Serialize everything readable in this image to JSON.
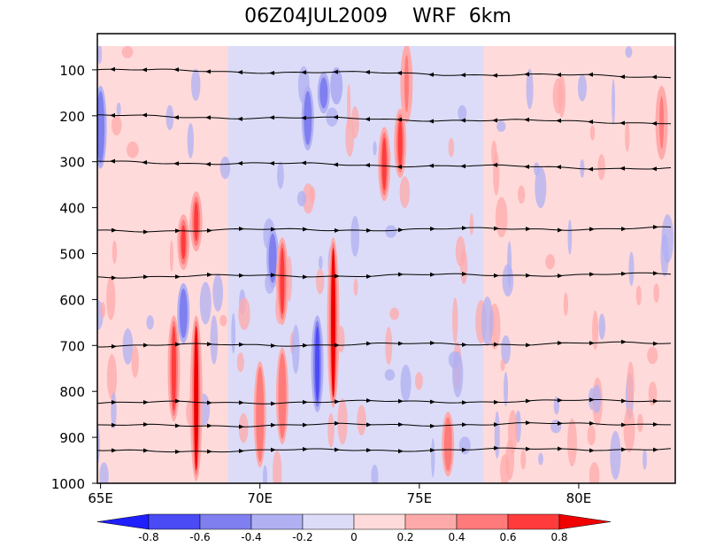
{
  "chart_data": {
    "type": "heatmap",
    "title": "06Z04JUL2009    WRF  6km",
    "xlabel": "",
    "ylabel": "",
    "x_range": [
      64.9,
      83.0
    ],
    "y_range": [
      1000,
      50
    ],
    "y_reversed": true,
    "x_ticks": [
      {
        "value": 65,
        "label": "65E"
      },
      {
        "value": 70,
        "label": "70E"
      },
      {
        "value": 75,
        "label": "75E"
      },
      {
        "value": 80,
        "label": "80E"
      }
    ],
    "y_ticks": [
      {
        "value": 100,
        "label": "100"
      },
      {
        "value": 200,
        "label": "200"
      },
      {
        "value": 300,
        "label": "300"
      },
      {
        "value": 400,
        "label": "400"
      },
      {
        "value": 500,
        "label": "500"
      },
      {
        "value": 600,
        "label": "600"
      },
      {
        "value": 700,
        "label": "700"
      },
      {
        "value": 800,
        "label": "800"
      },
      {
        "value": 900,
        "label": "900"
      },
      {
        "value": 1000,
        "label": "1000"
      }
    ],
    "colorbar": {
      "boundaries": [
        "-0.8",
        "-0.6",
        "-0.4",
        "-0.2",
        "0",
        "0.2",
        "0.4",
        "0.6",
        "0.8"
      ],
      "colors": [
        "#1f1fff",
        "#4b4bf5",
        "#7f7ff0",
        "#b0b0f3",
        "#dcdcf8",
        "#ffdada",
        "#ffaaaa",
        "#ff7b7b",
        "#ff3b3b",
        "#f00000"
      ]
    },
    "grid": false,
    "background_bands": [
      {
        "lon": [
          65.0,
          66.5
        ],
        "level": 0.1
      },
      {
        "lon": [
          66.5,
          69.0
        ],
        "level": 0.1
      },
      {
        "lon": [
          69.0,
          73.5
        ],
        "level": -0.1
      },
      {
        "lon": [
          73.5,
          77.0
        ],
        "level": -0.1
      },
      {
        "lon": [
          77.0,
          83.0
        ],
        "level": 0.1
      }
    ],
    "features": [
      {
        "lon": 65.0,
        "p": [
          150,
          300
        ],
        "level": -0.5
      },
      {
        "lon": 67.3,
        "p": [
          650,
          850
        ],
        "level": 0.6
      },
      {
        "lon": 67.6,
        "p": [
          430,
          520
        ],
        "level": 0.6
      },
      {
        "lon": 67.6,
        "p": [
          580,
          680
        ],
        "level": -0.5
      },
      {
        "lon": 68.0,
        "p": [
          650,
          980
        ],
        "level": 0.8
      },
      {
        "lon": 68.0,
        "p": [
          380,
          480
        ],
        "level": 0.6
      },
      {
        "lon": 70.0,
        "p": [
          750,
          950
        ],
        "level": 0.5
      },
      {
        "lon": 70.4,
        "p": [
          460,
          560
        ],
        "level": -0.5
      },
      {
        "lon": 70.7,
        "p": [
          480,
          640
        ],
        "level": 0.7
      },
      {
        "lon": 70.7,
        "p": [
          720,
          900
        ],
        "level": 0.5
      },
      {
        "lon": 71.5,
        "p": [
          150,
          260
        ],
        "level": -0.5
      },
      {
        "lon": 71.8,
        "p": [
          650,
          830
        ],
        "level": -0.7
      },
      {
        "lon": 72.3,
        "p": [
          480,
          820
        ],
        "level": 0.8
      },
      {
        "lon": 72.0,
        "p": [
          120,
          180
        ],
        "level": -0.5
      },
      {
        "lon": 72.4,
        "p": [
          110,
          160
        ],
        "level": -0.4
      },
      {
        "lon": 73.9,
        "p": [
          240,
          370
        ],
        "level": 0.7
      },
      {
        "lon": 74.4,
        "p": [
          200,
          320
        ],
        "level": 0.6
      },
      {
        "lon": 74.6,
        "p": [
          60,
          200
        ],
        "level": 0.4
      },
      {
        "lon": 75.9,
        "p": [
          860,
          970
        ],
        "level": 0.5
      },
      {
        "lon": 82.6,
        "p": [
          150,
          280
        ],
        "level": 0.4
      }
    ],
    "streamlines": [
      {
        "p": 100,
        "dir": "west"
      },
      {
        "p": 200,
        "dir": "west"
      },
      {
        "p": 300,
        "dir": "west"
      },
      {
        "p": 450,
        "dir": "east"
      },
      {
        "p": 550,
        "dir": "east"
      },
      {
        "p": 700,
        "dir": "east"
      },
      {
        "p": 825,
        "dir": "east"
      },
      {
        "p": 875,
        "dir": "east"
      },
      {
        "p": 930,
        "dir": "east"
      }
    ]
  }
}
